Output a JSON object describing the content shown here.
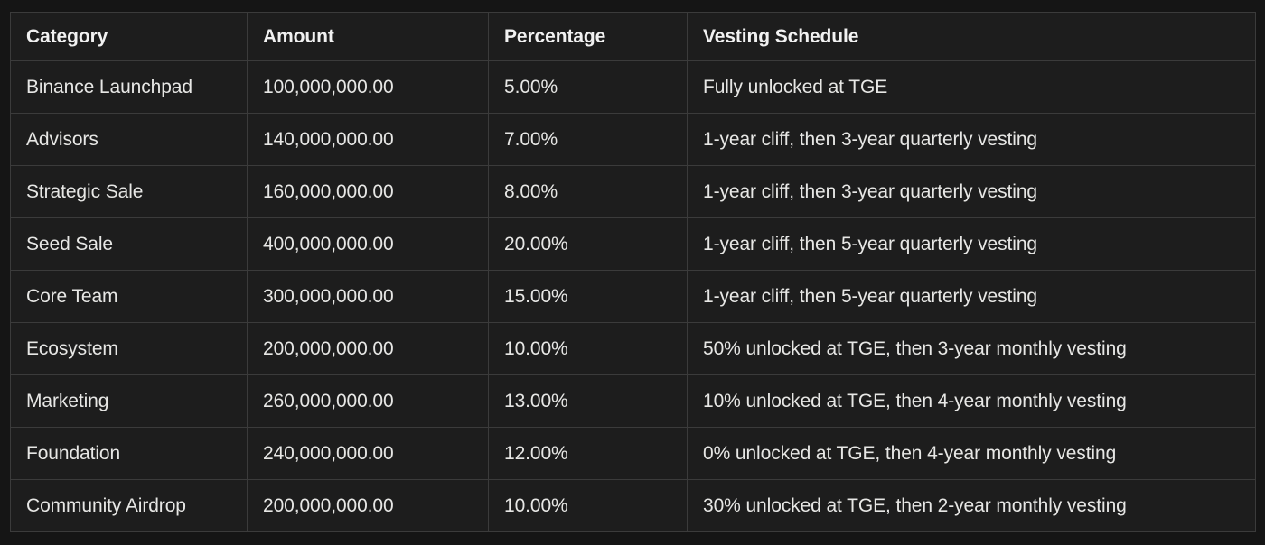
{
  "table": {
    "columns": [
      {
        "key": "category",
        "label": "Category"
      },
      {
        "key": "amount",
        "label": "Amount"
      },
      {
        "key": "percentage",
        "label": "Percentage"
      },
      {
        "key": "vesting",
        "label": "Vesting Schedule"
      }
    ],
    "rows": [
      {
        "category": "Binance Launchpad",
        "amount": "100,000,000.00",
        "percentage": "5.00%",
        "vesting": "Fully unlocked at TGE"
      },
      {
        "category": "Advisors",
        "amount": "140,000,000.00",
        "percentage": "7.00%",
        "vesting": "1-year cliff, then 3-year quarterly vesting"
      },
      {
        "category": "Strategic Sale",
        "amount": "160,000,000.00",
        "percentage": "8.00%",
        "vesting": "1-year cliff, then 3-year quarterly vesting"
      },
      {
        "category": "Seed Sale",
        "amount": "400,000,000.00",
        "percentage": "20.00%",
        "vesting": "1-year cliff, then 5-year quarterly vesting"
      },
      {
        "category": "Core Team",
        "amount": "300,000,000.00",
        "percentage": "15.00%",
        "vesting": "1-year cliff, then 5-year quarterly vesting"
      },
      {
        "category": "Ecosystem",
        "amount": "200,000,000.00",
        "percentage": "10.00%",
        "vesting": "50% unlocked at TGE, then 3-year monthly vesting"
      },
      {
        "category": "Marketing",
        "amount": "260,000,000.00",
        "percentage": "13.00%",
        "vesting": "10% unlocked at TGE, then 4-year monthly vesting"
      },
      {
        "category": "Foundation",
        "amount": "240,000,000.00",
        "percentage": "12.00%",
        "vesting": "0% unlocked at TGE, then 4-year monthly vesting"
      },
      {
        "category": "Community Airdrop",
        "amount": "200,000,000.00",
        "percentage": "10.00%",
        "vesting": "30% unlocked at TGE, then 2-year monthly vesting"
      }
    ]
  },
  "colors": {
    "page_background": "#151515",
    "cell_background": "#1d1d1d",
    "border": "#3b3b3b",
    "header_text": "#f1f1f1",
    "body_text": "#e7e7e5"
  }
}
